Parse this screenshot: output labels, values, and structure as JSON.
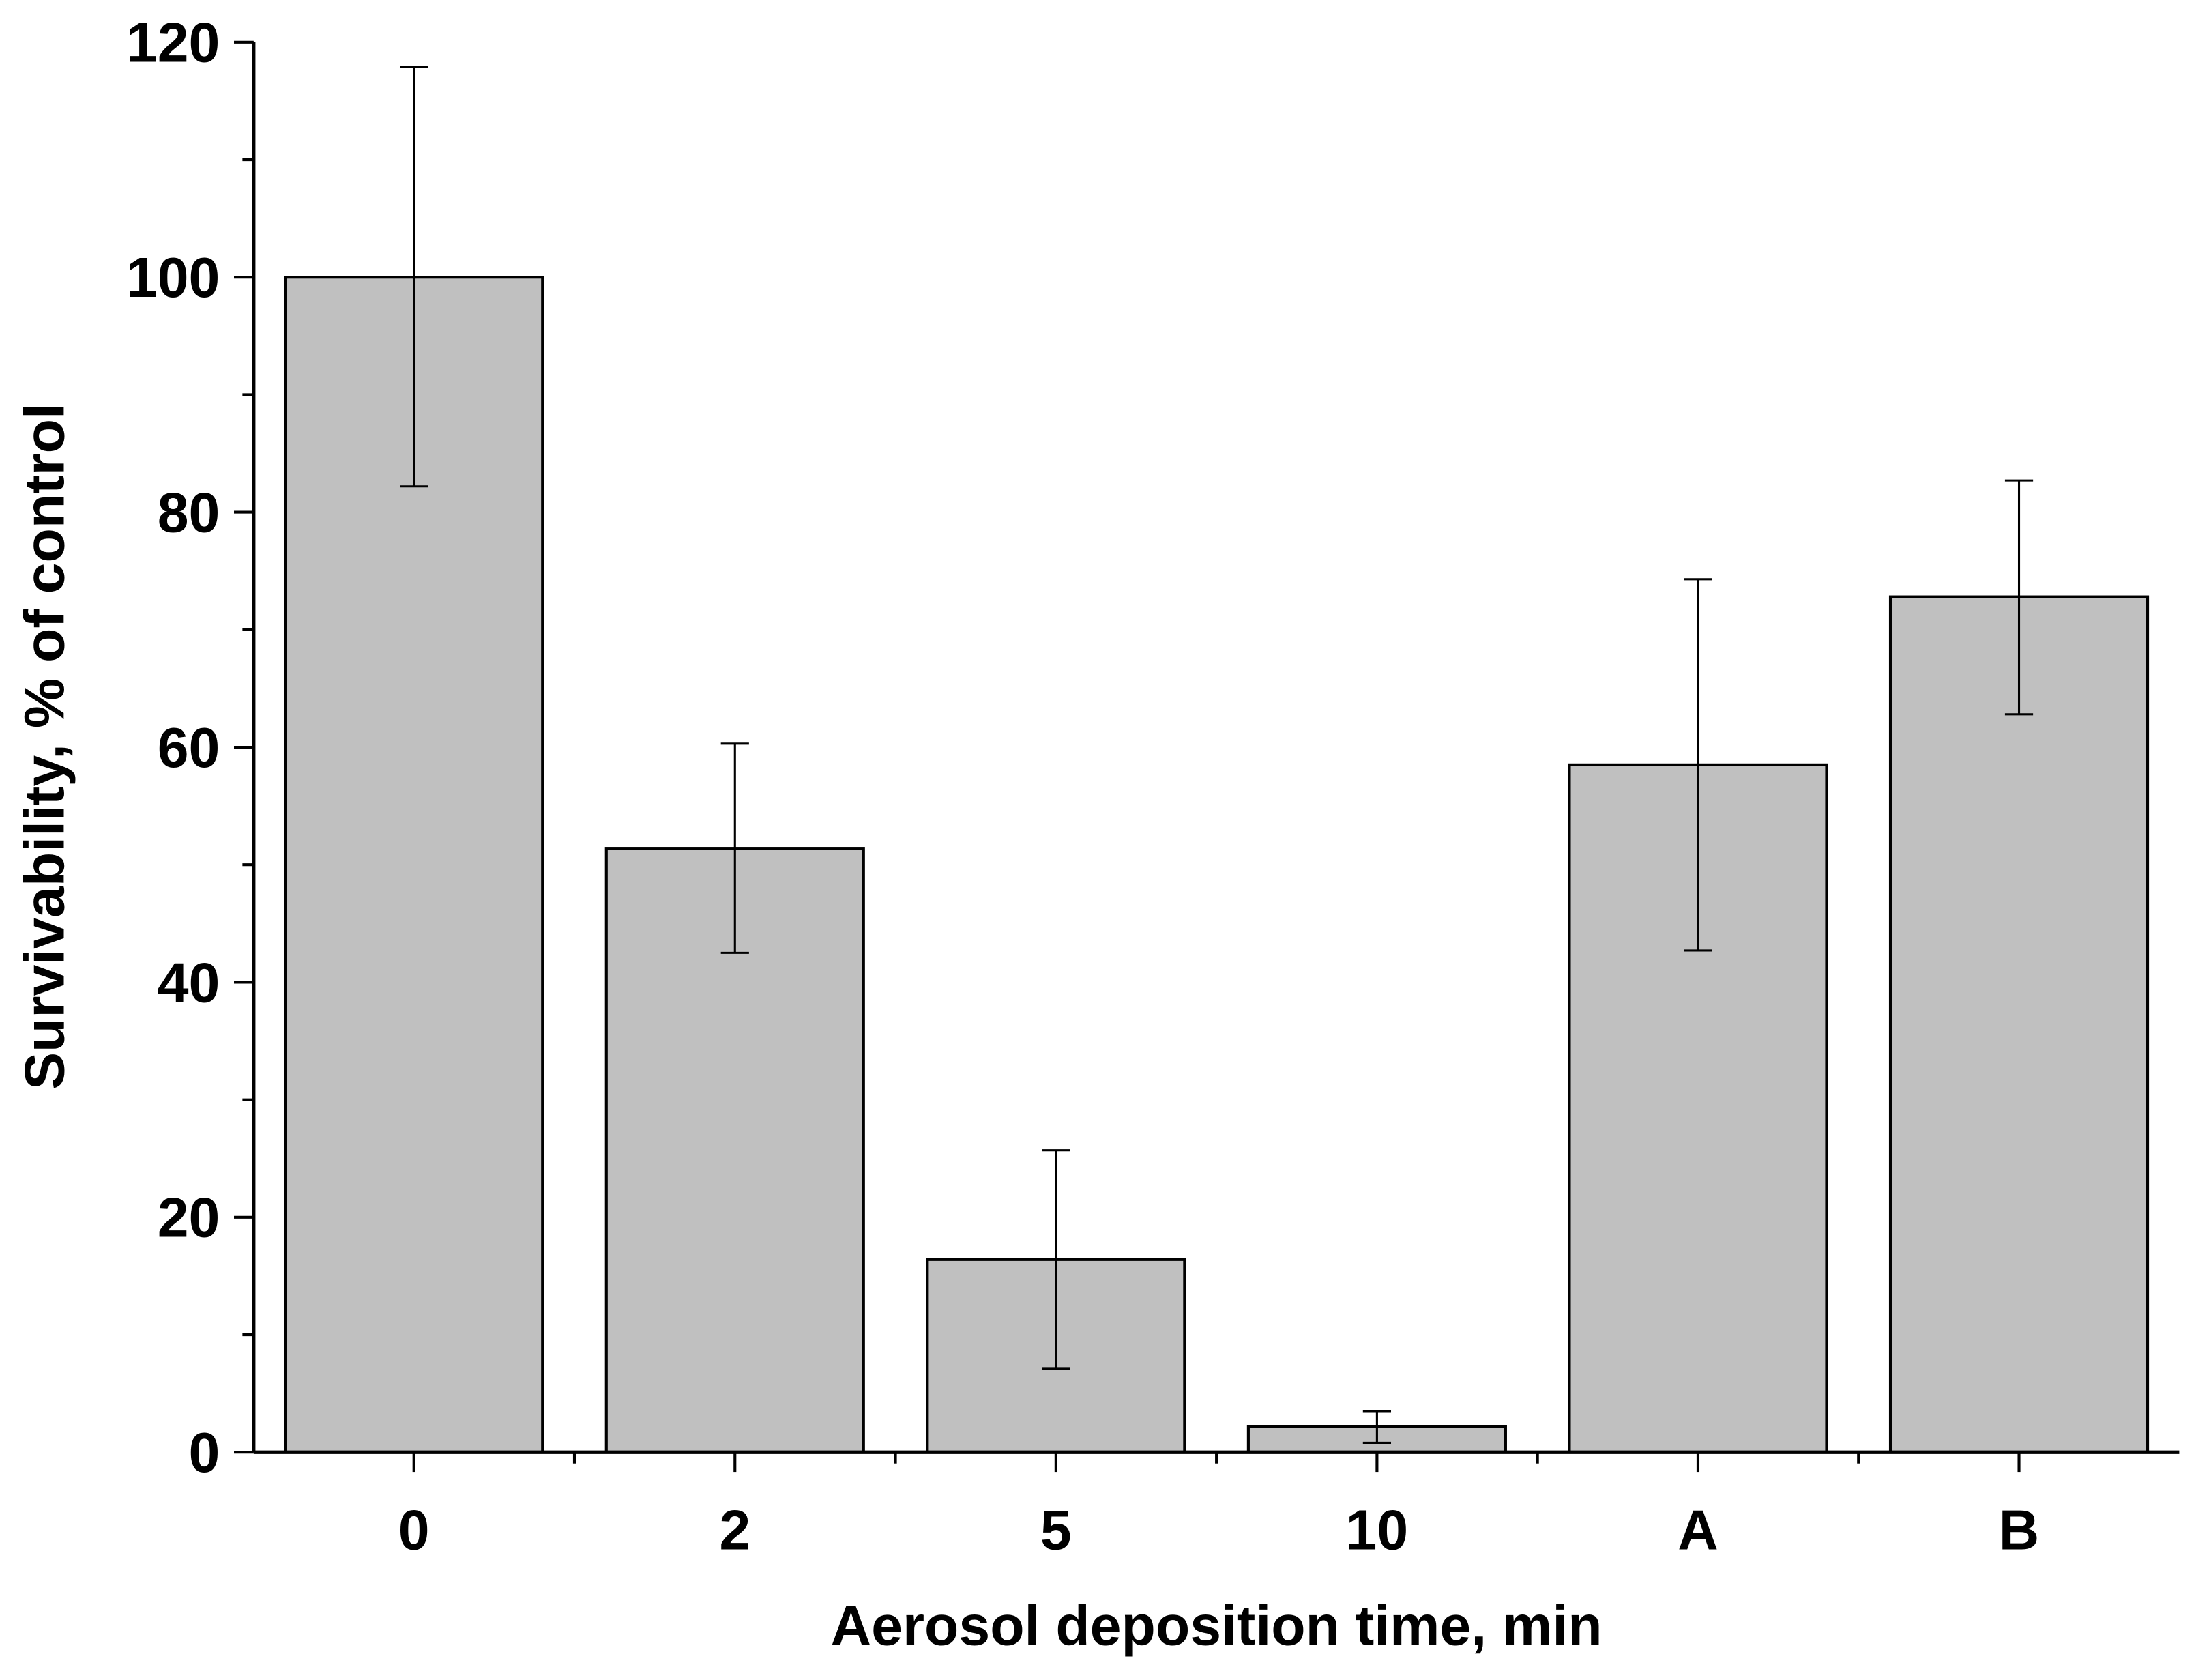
{
  "chart_data": {
    "type": "bar",
    "title": "",
    "xlabel": "Aerosol deposition time, min",
    "ylabel": "Survivability, % of control",
    "categories": [
      "0",
      "2",
      "5",
      "10",
      "A",
      "B"
    ],
    "values": [
      100,
      51.4,
      16.4,
      2.2,
      58.5,
      72.8
    ],
    "error_low": [
      82.2,
      42.5,
      7.1,
      0.8,
      42.7,
      62.8
    ],
    "error_high": [
      117.9,
      60.3,
      25.7,
      3.5,
      74.3,
      82.7
    ],
    "ylim": [
      0,
      120
    ],
    "yticks": [
      0,
      20,
      40,
      60,
      80,
      100,
      120
    ],
    "grid": false,
    "bar_color": "#c0c0c0",
    "edge_color": "#000000"
  }
}
